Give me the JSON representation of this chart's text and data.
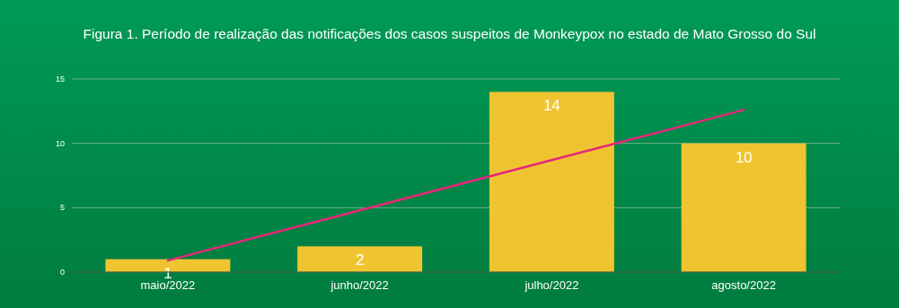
{
  "chart_data": {
    "type": "bar",
    "title": "Figura 1. Período de realização das notificações dos casos suspeitos de Monkeypox no estado de Mato Grosso do Sul",
    "categories": [
      "maio/2022",
      "junho/2022",
      "julho/2022",
      "agosto/2022"
    ],
    "series": [
      {
        "color": "#f0c431",
        "values": [
          1,
          2,
          14,
          10
        ],
        "value_labels": [
          "1",
          "2",
          "14",
          "10"
        ]
      },
      {
        "type": "line",
        "color": "#e8267a",
        "values": [
          0.9,
          4.8,
          8.7,
          12.6
        ]
      }
    ],
    "ylim": [
      0,
      15
    ],
    "yticks": [
      0,
      5,
      10,
      15
    ],
    "grid": "y"
  }
}
